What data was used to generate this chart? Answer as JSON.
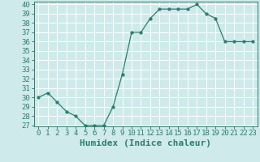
{
  "x": [
    0,
    1,
    2,
    3,
    4,
    5,
    6,
    7,
    8,
    9,
    10,
    11,
    12,
    13,
    14,
    15,
    16,
    17,
    18,
    19,
    20,
    21,
    22,
    23
  ],
  "y": [
    30,
    30.5,
    29.5,
    28.5,
    28,
    27,
    27,
    27,
    29,
    32.5,
    37,
    37,
    38.5,
    39.5,
    39.5,
    39.5,
    39.5,
    40,
    39,
    38.5,
    36,
    36,
    36,
    36
  ],
  "ylim_min": 27,
  "ylim_max": 40,
  "yticks": [
    27,
    28,
    29,
    30,
    31,
    32,
    33,
    34,
    35,
    36,
    37,
    38,
    39,
    40
  ],
  "xticks": [
    0,
    1,
    2,
    3,
    4,
    5,
    6,
    7,
    8,
    9,
    10,
    11,
    12,
    13,
    14,
    15,
    16,
    17,
    18,
    19,
    20,
    21,
    22,
    23
  ],
  "xlabel": "Humidex (Indice chaleur)",
  "line_color": "#2e7d6e",
  "marker": "o",
  "marker_size": 2.5,
  "bg_color": "#ceeaea",
  "grid_color": "#ffffff",
  "tick_fontsize": 6.5,
  "xlabel_fontsize": 8,
  "spine_color": "#2e7d6e"
}
